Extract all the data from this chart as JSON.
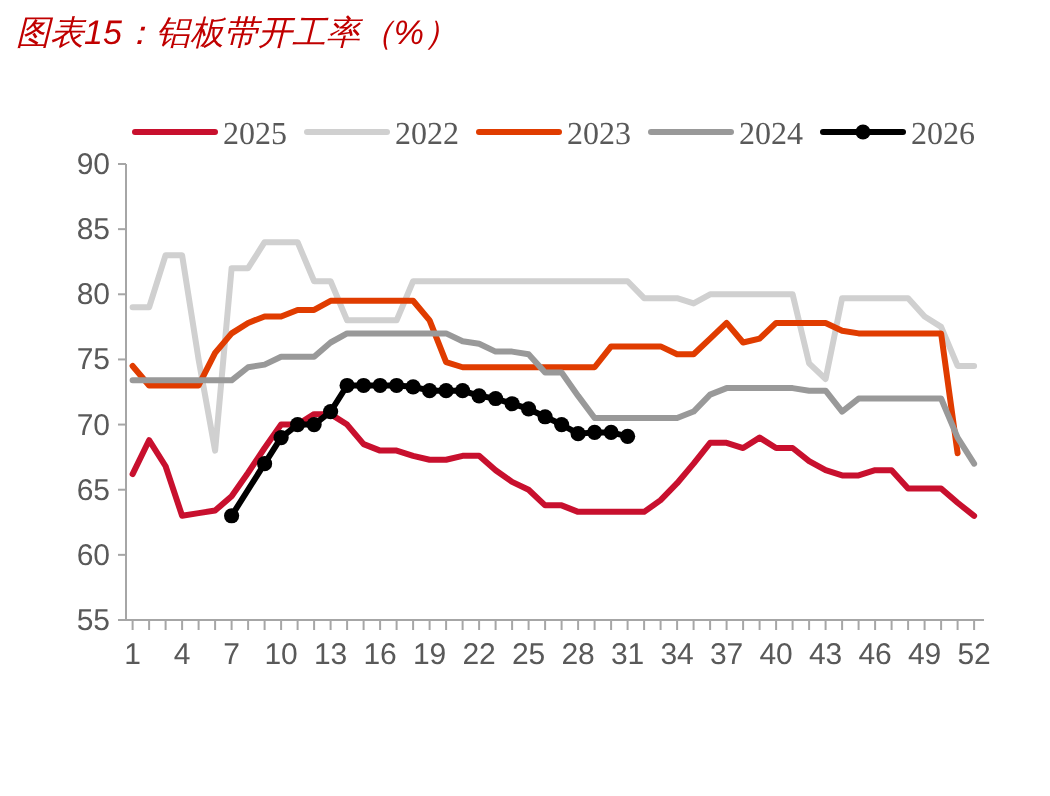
{
  "chart_data": {
    "type": "line",
    "title": "图表15：铝板带开工率（%）",
    "x": [
      1,
      2,
      3,
      4,
      5,
      6,
      7,
      8,
      9,
      10,
      11,
      12,
      13,
      14,
      15,
      16,
      17,
      18,
      19,
      20,
      21,
      22,
      23,
      24,
      25,
      26,
      27,
      28,
      29,
      30,
      31,
      32,
      33,
      34,
      35,
      36,
      37,
      38,
      39,
      40,
      41,
      42,
      43,
      44,
      45,
      46,
      47,
      48,
      49,
      50,
      51,
      52
    ],
    "xlim": [
      0.6,
      52.6
    ],
    "xticks": [
      1,
      {
        "value": 2,
        "label": null
      },
      {
        "value": 3,
        "label": null
      },
      4,
      {
        "value": 5,
        "label": null
      },
      {
        "value": 6,
        "label": null
      },
      7,
      {
        "value": 8,
        "label": null
      },
      {
        "value": 9,
        "label": null
      },
      10,
      {
        "value": 11,
        "label": null
      },
      {
        "value": 12,
        "label": null
      },
      13,
      {
        "value": 14,
        "label": null
      },
      {
        "value": 15,
        "label": null
      },
      16,
      {
        "value": 17,
        "label": null
      },
      {
        "value": 18,
        "label": null
      },
      19,
      {
        "value": 20,
        "label": null
      },
      {
        "value": 21,
        "label": null
      },
      22,
      {
        "value": 23,
        "label": null
      },
      {
        "value": 24,
        "label": null
      },
      25,
      {
        "value": 26,
        "label": null
      },
      {
        "value": 27,
        "label": null
      },
      28,
      {
        "value": 29,
        "label": null
      },
      {
        "value": 30,
        "label": null
      },
      31,
      {
        "value": 32,
        "label": null
      },
      {
        "value": 33,
        "label": null
      },
      34,
      {
        "value": 35,
        "label": null
      },
      {
        "value": 36,
        "label": null
      },
      37,
      {
        "value": 38,
        "label": null
      },
      {
        "value": 39,
        "label": null
      },
      40,
      {
        "value": 41,
        "label": null
      },
      {
        "value": 42,
        "label": null
      },
      43,
      {
        "value": 44,
        "label": null
      },
      {
        "value": 45,
        "label": null
      },
      46,
      {
        "value": 47,
        "label": null
      },
      {
        "value": 48,
        "label": null
      },
      49,
      {
        "value": 50,
        "label": null
      },
      {
        "value": 51,
        "label": null
      },
      52
    ],
    "ylim": [
      55,
      90
    ],
    "yticks": [
      55,
      60,
      65,
      70,
      75,
      80,
      85,
      90
    ],
    "legend": "top",
    "grid": false,
    "series": [
      {
        "name": "2025",
        "color": "#c8102e",
        "values": [
          66.2,
          68.8,
          66.8,
          63,
          63.2,
          63.4,
          64.5,
          66.3,
          68.2,
          70,
          70,
          70.8,
          70.8,
          70,
          68.5,
          68,
          68,
          67.6,
          67.3,
          67.3,
          67.6,
          67.6,
          66.5,
          65.6,
          65,
          63.8,
          63.8,
          63.3,
          63.3,
          63.3,
          63.3,
          63.3,
          64.2,
          65.5,
          67,
          68.6,
          68.6,
          68.2,
          69,
          68.2,
          68.2,
          67.2,
          66.5,
          66.1,
          66.1,
          66.5,
          66.5,
          65.1,
          65.1,
          65.1,
          64,
          63
        ]
      },
      {
        "name": "2022",
        "color": "#d0d0d0",
        "values": [
          79,
          79,
          83,
          83,
          75,
          68,
          82,
          82,
          84,
          84,
          84,
          81,
          81,
          78,
          78,
          78,
          78,
          81,
          81,
          81,
          81,
          81,
          81,
          81,
          81,
          81,
          81,
          81,
          81,
          81,
          81,
          79.7,
          79.7,
          79.7,
          79.3,
          80,
          80,
          80,
          80,
          80,
          80,
          74.7,
          73.5,
          79.7,
          79.7,
          79.7,
          79.7,
          79.7,
          78.3,
          77.5,
          74.5,
          74.5
        ]
      },
      {
        "name": "2023",
        "color": "#e03c00",
        "values": [
          74.5,
          73,
          73,
          73,
          73,
          75.5,
          77,
          77.8,
          78.3,
          78.3,
          78.8,
          78.8,
          79.5,
          79.5,
          79.5,
          79.5,
          79.5,
          79.5,
          78,
          74.8,
          74.4,
          74.4,
          74.4,
          74.4,
          74.4,
          74.4,
          74.4,
          74.4,
          74.4,
          76,
          76,
          76,
          76,
          75.4,
          75.4,
          76.6,
          77.8,
          76.3,
          76.6,
          77.8,
          77.8,
          77.8,
          77.8,
          77.2,
          77,
          77,
          77,
          77,
          77,
          77,
          67.8,
          null
        ]
      },
      {
        "name": "2024",
        "color": "#999999",
        "values": [
          73.4,
          73.4,
          73.4,
          73.4,
          73.4,
          73.4,
          73.4,
          74.4,
          74.6,
          75.2,
          75.2,
          75.2,
          76.3,
          77,
          77,
          77,
          77,
          77,
          77,
          77,
          76.4,
          76.2,
          75.6,
          75.6,
          75.4,
          74,
          74,
          72.2,
          70.5,
          70.5,
          70.5,
          70.5,
          70.5,
          70.5,
          71,
          72.3,
          72.8,
          72.8,
          72.8,
          72.8,
          72.8,
          72.6,
          72.6,
          71,
          72,
          72,
          72,
          72,
          72,
          72,
          69,
          67
        ]
      },
      {
        "name": "2026",
        "color": "#000000",
        "marker": "circle",
        "x": [
          7,
          9,
          10,
          11,
          12,
          13,
          14,
          15,
          16,
          17,
          18,
          19,
          20,
          21,
          22,
          23,
          24,
          25,
          26,
          27,
          28,
          29,
          30,
          31
        ],
        "values": [
          63,
          67,
          69,
          70,
          70,
          71,
          73,
          73,
          73,
          73,
          72.9,
          72.6,
          72.6,
          72.6,
          72.2,
          72,
          71.6,
          71.2,
          70.6,
          70,
          69.3,
          69.4,
          69.4,
          69.1
        ]
      }
    ]
  }
}
